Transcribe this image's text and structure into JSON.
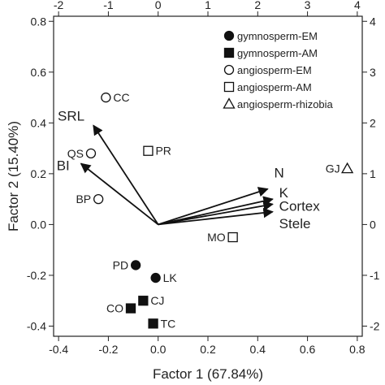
{
  "chart_data": {
    "type": "scatter",
    "title": "",
    "xlabel": "Factor 1 (67.84%)",
    "ylabel": "Factor 2 (15.40%)",
    "xlim": [
      -0.42,
      0.82
    ],
    "ylim": [
      -0.44,
      0.82
    ],
    "x_ticks": [
      -0.4,
      -0.2,
      0.0,
      0.2,
      0.4,
      0.6,
      0.8
    ],
    "x_tick_labels": [
      "-0.4",
      "-0.2",
      "0.0",
      "0.2",
      "0.4",
      "0.6",
      "0.8"
    ],
    "y_ticks": [
      -0.4,
      -0.2,
      0.0,
      0.2,
      0.4,
      0.6,
      0.8
    ],
    "y_tick_labels": [
      "-0.4",
      "-0.2",
      "0.0",
      "0.2",
      "0.4",
      "0.6",
      "0.8"
    ],
    "top_axis": {
      "lim": [
        -2.1,
        4.1
      ],
      "ticks": [
        -2,
        -1,
        0,
        1,
        2,
        3,
        4
      ],
      "tick_labels": [
        "-2",
        "-1",
        "0",
        "1",
        "2",
        "3",
        "4"
      ]
    },
    "right_axis": {
      "lim": [
        -2.2,
        4.1
      ],
      "ticks": [
        -2,
        -1,
        0,
        1,
        2,
        3,
        4
      ],
      "tick_labels": [
        "-2",
        "-1",
        "0",
        "1",
        "2",
        "3",
        "4"
      ]
    },
    "grid": false,
    "legend_position": "top-right",
    "legend": [
      {
        "label": "gymnosperm-EM",
        "marker": "filled-circle"
      },
      {
        "label": "gymnosperm-AM",
        "marker": "filled-square"
      },
      {
        "label": "angiosperm-EM",
        "marker": "open-circle"
      },
      {
        "label": "angiosperm-AM",
        "marker": "open-square"
      },
      {
        "label": "angiosperm-rhizobia",
        "marker": "open-triangle"
      }
    ],
    "points": [
      {
        "label": "CC",
        "x": -0.21,
        "y": 0.5,
        "marker": "open-circle"
      },
      {
        "label": "QS",
        "x": -0.27,
        "y": 0.28,
        "marker": "open-circle"
      },
      {
        "label": "BP",
        "x": -0.24,
        "y": 0.1,
        "marker": "open-circle"
      },
      {
        "label": "PR",
        "x": -0.04,
        "y": 0.29,
        "marker": "open-square"
      },
      {
        "label": "GJ",
        "x": 0.76,
        "y": 0.22,
        "marker": "open-triangle"
      },
      {
        "label": "MO",
        "x": 0.3,
        "y": -0.05,
        "marker": "open-square"
      },
      {
        "label": "PD",
        "x": -0.09,
        "y": -0.16,
        "marker": "filled-circle"
      },
      {
        "label": "LK",
        "x": -0.01,
        "y": -0.21,
        "marker": "filled-circle"
      },
      {
        "label": "CJ",
        "x": -0.06,
        "y": -0.3,
        "marker": "filled-square"
      },
      {
        "label": "CO",
        "x": -0.11,
        "y": -0.33,
        "marker": "filled-square"
      },
      {
        "label": "TC",
        "x": -0.02,
        "y": -0.39,
        "marker": "filled-square"
      }
    ],
    "vectors": [
      {
        "label": "SRL",
        "x": -0.26,
        "y": 0.39
      },
      {
        "label": "BI",
        "x": -0.31,
        "y": 0.24
      },
      {
        "label": "N",
        "x": 0.44,
        "y": 0.14
      },
      {
        "label": "K",
        "x": 0.46,
        "y": 0.1
      },
      {
        "label": "Cortex",
        "x": 0.46,
        "y": 0.08
      },
      {
        "label": "Stele",
        "x": 0.46,
        "y": 0.05
      }
    ]
  }
}
